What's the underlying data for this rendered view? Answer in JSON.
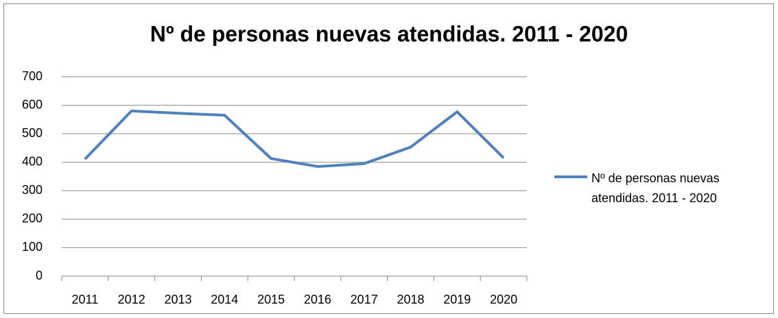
{
  "chart_data": {
    "type": "line",
    "title": "Nº de personas nuevas atendidas. 2011 - 2020",
    "categories": [
      "2011",
      "2012",
      "2013",
      "2014",
      "2015",
      "2016",
      "2017",
      "2018",
      "2019",
      "2020"
    ],
    "series": [
      {
        "name": "Nº de personas nuevas atendidas. 2011 - 2020",
        "color": "#4f81bd",
        "values": [
          411,
          580,
          572,
          565,
          413,
          385,
          395,
          453,
          577,
          415
        ]
      }
    ],
    "ylim": [
      0,
      700
    ],
    "yticks": [
      0,
      100,
      200,
      300,
      400,
      500,
      600,
      700
    ],
    "grid": true,
    "legend": "right"
  }
}
